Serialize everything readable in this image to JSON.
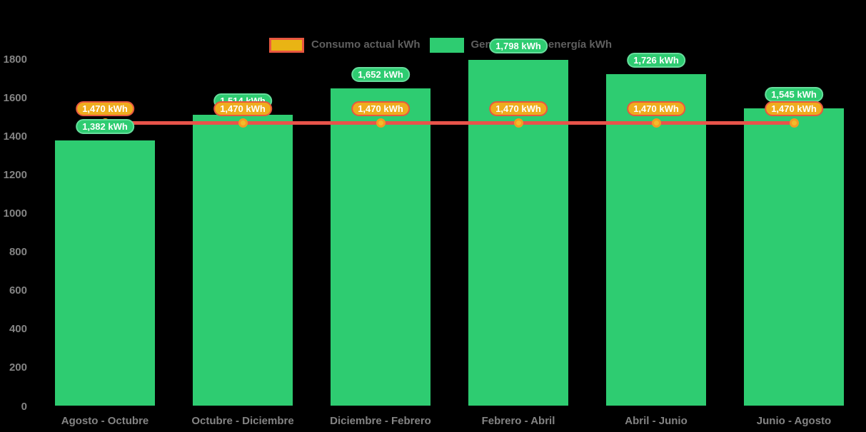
{
  "chart_data": {
    "type": "bar",
    "title": "",
    "xlabel": "",
    "ylabel": "",
    "categories": [
      "Agosto - Octubre",
      "Octubre - Diciembre",
      "Diciembre - Febrero",
      "Febrero - Abril",
      "Abril - Junio",
      "Junio - Agosto"
    ],
    "series": [
      {
        "name": "Generación de energía kWh",
        "type": "bar",
        "color": "#2ecc71",
        "values": [
          1382,
          1514,
          1652,
          1798,
          1726,
          1545
        ],
        "value_labels": [
          "1,382 kWh",
          "1,514 kWh",
          "1,652 kWh",
          "1,798 kWh",
          "1,726 kWh",
          "1,545 kWh"
        ]
      },
      {
        "name": "Consumo actual kWh",
        "type": "line",
        "color": "#e8534a",
        "values": [
          1470,
          1470,
          1470,
          1470,
          1470,
          1470
        ],
        "value_labels": [
          "1,470 kWh",
          "1,470 kWh",
          "1,470 kWh",
          "1,470 kWh",
          "1,470 kWh",
          "1,470 kWh"
        ]
      }
    ],
    "ylim": [
      0,
      1800
    ],
    "y_ticks": [
      0,
      200,
      400,
      600,
      800,
      1000,
      1200,
      1400,
      1600,
      1800
    ],
    "grid": false,
    "legend_position": "top",
    "background": "#000000"
  },
  "legend": {
    "items": [
      {
        "label": "Consumo actual kWh",
        "swatch_fill": "#e9b414",
        "swatch_border": "#e85740"
      },
      {
        "label": "Generación de energía kWh",
        "swatch_fill": "#2ecc71",
        "swatch_border": ""
      }
    ]
  },
  "colors": {
    "background": "#000000",
    "bar": "#2ecc71",
    "line": "#e8534a",
    "bar_badge_fill": "#2ecc71",
    "bar_badge_border": "#66dd9c",
    "line_badge_fill": "#efac1e",
    "line_badge_border": "#e85740",
    "dot_fill": "#f3bc2b",
    "dot_border": "#f59b23",
    "axis_text": "#848484",
    "legend_text": "#5f5f5f"
  }
}
